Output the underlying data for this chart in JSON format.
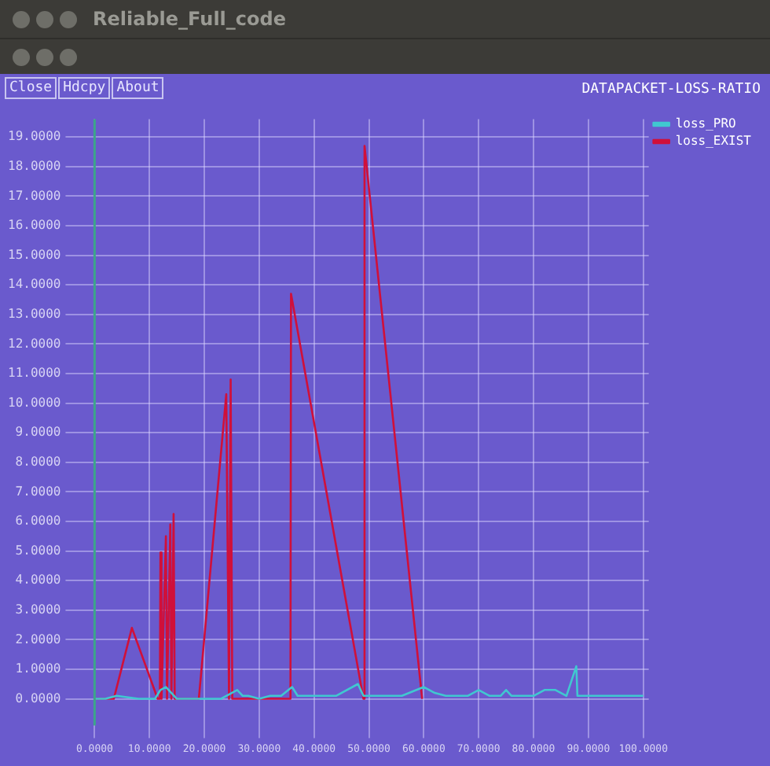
{
  "chart_data": {
    "type": "line",
    "title": "DATAPACKET-LOSS-RATIO",
    "annotations": [
      "Reliable_Full_code",
      "Close",
      "Hdcpy",
      "About"
    ],
    "xlim": [
      -3,
      101
    ],
    "ylim": [
      -0.9,
      19.6
    ],
    "xticks": [
      {
        "value": 0,
        "label": "0.0000"
      },
      {
        "value": 10,
        "label": "10.0000"
      },
      {
        "value": 20,
        "label": "20.0000"
      },
      {
        "value": 30,
        "label": "30.0000"
      },
      {
        "value": 40,
        "label": "40.0000"
      },
      {
        "value": 50,
        "label": "50.0000"
      },
      {
        "value": 60,
        "label": "60.0000"
      },
      {
        "value": 70,
        "label": "70.0000"
      },
      {
        "value": 80,
        "label": "80.0000"
      },
      {
        "value": 90,
        "label": "90.0000"
      },
      {
        "value": 100,
        "label": "100.0000"
      }
    ],
    "yticks": [
      {
        "value": 0,
        "label": "0.0000"
      },
      {
        "value": 1,
        "label": "1.0000"
      },
      {
        "value": 2,
        "label": "2.0000"
      },
      {
        "value": 3,
        "label": "3.0000"
      },
      {
        "value": 4,
        "label": "4.0000"
      },
      {
        "value": 5,
        "label": "5.0000"
      },
      {
        "value": 6,
        "label": "6.0000"
      },
      {
        "value": 7,
        "label": "7.0000"
      },
      {
        "value": 8,
        "label": "8.0000"
      },
      {
        "value": 9,
        "label": "9.0000"
      },
      {
        "value": 10,
        "label": "10.0000"
      },
      {
        "value": 11,
        "label": "11.0000"
      },
      {
        "value": 12,
        "label": "12.0000"
      },
      {
        "value": 13,
        "label": "13.0000"
      },
      {
        "value": 14,
        "label": "14.0000"
      },
      {
        "value": 15,
        "label": "15.0000"
      },
      {
        "value": 16,
        "label": "16.0000"
      },
      {
        "value": 17,
        "label": "17.0000"
      },
      {
        "value": 18,
        "label": "18.0000"
      },
      {
        "value": 19,
        "label": "19.0000"
      }
    ],
    "grid": true,
    "legend": "top right",
    "marker": "none",
    "line_style": "solid",
    "ref_lines": [
      {
        "axis": "x",
        "value": 0,
        "color": "#3ca58a"
      }
    ],
    "series": [
      {
        "name": "loss_PRO",
        "color": "#40c8d0",
        "x": [
          0,
          2,
          4,
          8,
          11,
          12,
          13,
          14,
          15,
          17,
          20,
          23,
          26,
          27,
          28,
          30,
          32,
          34,
          36,
          37,
          40,
          44,
          48,
          49,
          52,
          56,
          60,
          62,
          64,
          66,
          68,
          70,
          72,
          74,
          75,
          76,
          78,
          80,
          82,
          84,
          86,
          87.8,
          88,
          90,
          92,
          94,
          96,
          98,
          100
        ],
        "values": [
          0,
          0,
          0.1,
          0,
          0,
          0.3,
          0.4,
          0.2,
          0,
          0,
          0,
          0,
          0.3,
          0.1,
          0.1,
          0,
          0.1,
          0.1,
          0.4,
          0.1,
          0.1,
          0.1,
          0.5,
          0.1,
          0.1,
          0.1,
          0.4,
          0.2,
          0.1,
          0.1,
          0.1,
          0.3,
          0.1,
          0.1,
          0.3,
          0.1,
          0.1,
          0.1,
          0.3,
          0.3,
          0.1,
          1.1,
          0.1,
          0.1,
          0.1,
          0.1,
          0.1,
          0.1,
          0.1
        ]
      },
      {
        "name": "loss_EXIST",
        "color": "#d0103a",
        "x": [
          0,
          3.5,
          6.8,
          11.5,
          11.9,
          12,
          12.2,
          13,
          13.2,
          13.8,
          14,
          14.4,
          14.6,
          19,
          24,
          24.5,
          24.8,
          25.1,
          29.4,
          35.7,
          35.8,
          49,
          49.2,
          59.7
        ],
        "values": [
          0,
          0,
          2.4,
          0,
          0,
          4.95,
          0,
          5.5,
          0,
          5.9,
          0,
          6.25,
          0,
          0,
          10.3,
          0,
          10.8,
          0,
          0,
          0,
          13.7,
          0,
          18.7,
          0
        ]
      }
    ]
  }
}
